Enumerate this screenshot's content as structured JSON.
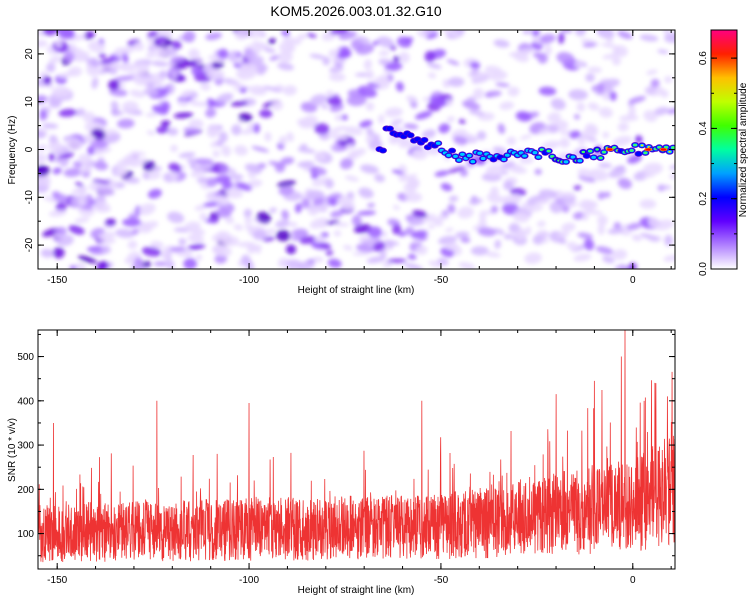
{
  "title": "KOM5.2026.003.01.32.G10",
  "chart_data": [
    {
      "type": "heatmap",
      "xlabel": "Height of straight line (km)",
      "ylabel": "Frequency (Hz)",
      "xlim": [
        -155,
        11
      ],
      "ylim": [
        -25,
        25
      ],
      "xticks": [
        -150,
        -100,
        -50,
        0
      ],
      "xtick_labels": [
        "-150",
        "-100",
        "-50",
        "0"
      ],
      "yticks": [
        -20,
        -10,
        0,
        10,
        20
      ],
      "ytick_labels": [
        "-20",
        "-10",
        "0",
        "10",
        "20"
      ],
      "colorbar": {
        "label": "Normalized spectral amplitude",
        "range": [
          0.0,
          0.68
        ],
        "ticks": [
          0.0,
          0.2,
          0.4,
          0.6
        ],
        "tick_labels": [
          "0.0",
          "0.2",
          "0.4",
          "0.6"
        ],
        "colors": [
          "#ffffff",
          "#8000ff",
          "#0000ff",
          "#00c0ff",
          "#00ff80",
          "#80ff00",
          "#ffff00",
          "#ff8000",
          "#ff0000",
          "#ff0080"
        ]
      },
      "signal_track": {
        "description_points_x": [
          -65,
          -55,
          -45,
          -35,
          -25,
          -15,
          -5,
          5,
          10
        ],
        "description_points_y": [
          5,
          2,
          -2,
          -1,
          -1,
          -2,
          0,
          0,
          0
        ],
        "peak_amplitude": 0.68
      }
    },
    {
      "type": "line",
      "xlabel": "Height of straight line (km)",
      "ylabel": "SNR (10 * v/v)",
      "xlim": [
        -155,
        11
      ],
      "ylim": [
        20,
        560
      ],
      "xticks": [
        -150,
        -100,
        -50,
        0
      ],
      "xtick_labels": [
        "-150",
        "-100",
        "-50",
        "0"
      ],
      "yticks": [
        100,
        200,
        300,
        400,
        500
      ],
      "ytick_labels": [
        "100",
        "200",
        "300",
        "400",
        "500"
      ],
      "series": [
        {
          "name": "SNR",
          "color": "#ee3333",
          "samples": 2600,
          "baseline_x": [
            -155,
            -100,
            -50,
            -25,
            0,
            11
          ],
          "baseline_y": [
            100,
            110,
            115,
            140,
            165,
            200
          ],
          "peaks": [
            {
              "x": -151,
              "y": 350
            },
            {
              "x": -124,
              "y": 400
            },
            {
              "x": -100,
              "y": 395
            },
            {
              "x": -55,
              "y": 400
            },
            {
              "x": -20,
              "y": 415
            },
            {
              "x": -10,
              "y": 445
            },
            {
              "x": -3,
              "y": 500
            },
            {
              "x": -2,
              "y": 560
            },
            {
              "x": 6,
              "y": 440
            },
            {
              "x": 9,
              "y": 410
            }
          ]
        }
      ]
    }
  ]
}
